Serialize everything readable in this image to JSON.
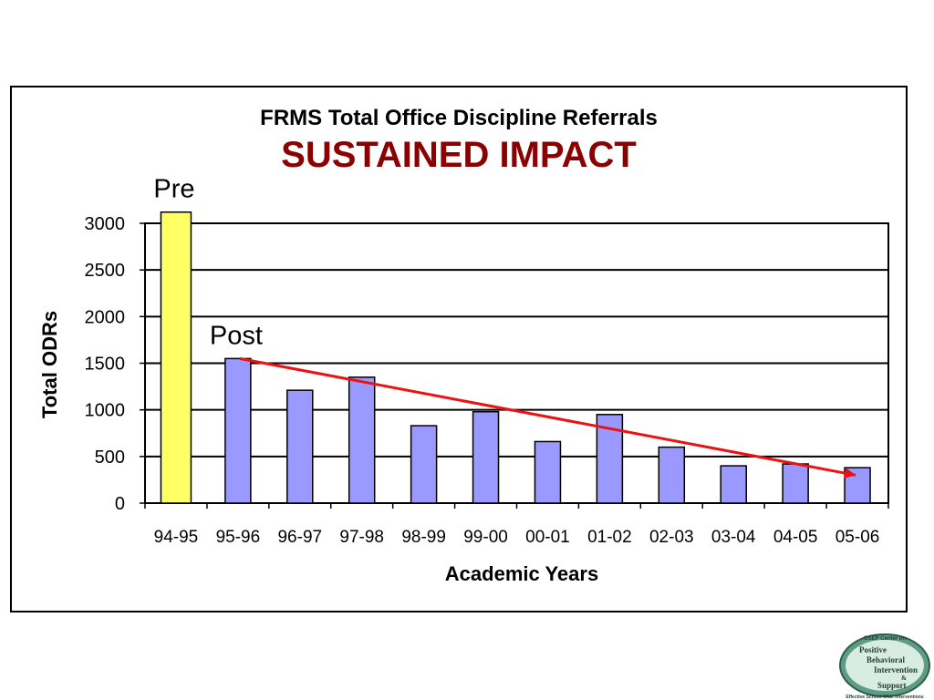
{
  "chart_data": {
    "type": "bar",
    "title": "FRMS Total Office Discipline Referrals",
    "subtitle": "SUSTAINED IMPACT",
    "xlabel": "Academic Years",
    "ylabel": "Total ODRs",
    "categories": [
      "94-95",
      "95-96",
      "96-97",
      "97-98",
      "98-99",
      "99-00",
      "00-01",
      "01-02",
      "02-03",
      "03-04",
      "04-05",
      "05-06"
    ],
    "values": [
      3120,
      1550,
      1210,
      1350,
      830,
      980,
      660,
      950,
      600,
      400,
      420,
      380
    ],
    "ylim": [
      0,
      3000
    ],
    "yticks": [
      0,
      500,
      1000,
      1500,
      2000,
      2500,
      3000
    ],
    "grid": true,
    "colors": {
      "pre_bar": "#ffff66",
      "post_bar": "#9999ff",
      "trend_line": "#ee1111",
      "subtitle": "#8b0000"
    },
    "annotations": [
      {
        "text": "Pre",
        "category": "94-95"
      },
      {
        "text": "Post",
        "category": "95-96"
      }
    ],
    "trend_line": {
      "from": {
        "category": "95-96",
        "value": 1550
      },
      "to": {
        "category": "05-06",
        "value": 300
      }
    }
  },
  "logo": {
    "header": "OSEP Center on",
    "lines": [
      "Positive",
      "Behavioral",
      "Intervention",
      "&",
      "Support"
    ],
    "tagline": "Effective School-Wide Interventions",
    "icon": "pbis-logo"
  }
}
